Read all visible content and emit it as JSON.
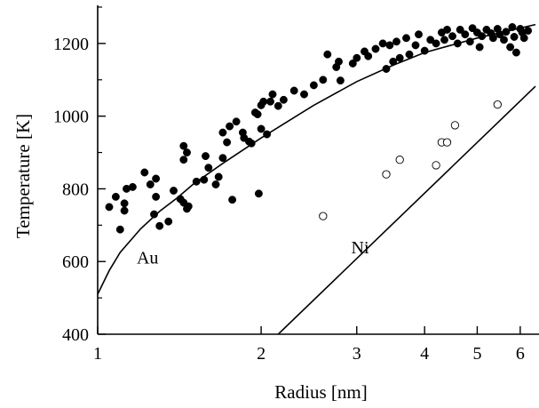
{
  "chart_data": {
    "type": "scatter",
    "title": "",
    "xlabel": "Radius [nm]",
    "ylabel": "Temperature [K]",
    "x_scale": "log",
    "xlim": [
      1,
      6.4
    ],
    "ylim": [
      400,
      1300
    ],
    "x_ticks": [
      {
        "value": 1,
        "label": "1"
      },
      {
        "value": 2,
        "label": "2"
      },
      {
        "value": 3,
        "label": "3"
      },
      {
        "value": 4,
        "label": "4"
      },
      {
        "value": 5,
        "label": "5"
      },
      {
        "value": 6,
        "label": "6"
      }
    ],
    "y_ticks": [
      {
        "value": 400,
        "label": "400"
      },
      {
        "value": 600,
        "label": "600"
      },
      {
        "value": 800,
        "label": "800"
      },
      {
        "value": 1000,
        "label": "1000"
      },
      {
        "value": 1200,
        "label": "1200"
      }
    ],
    "grid": false,
    "series": [
      {
        "name": "Au",
        "marker": "filled-circle",
        "color": "#000000",
        "points": [
          [
            1.05,
            750
          ],
          [
            1.08,
            778
          ],
          [
            1.1,
            688
          ],
          [
            1.12,
            740
          ],
          [
            1.12,
            760
          ],
          [
            1.13,
            800
          ],
          [
            1.16,
            805
          ],
          [
            1.22,
            845
          ],
          [
            1.25,
            812
          ],
          [
            1.27,
            730
          ],
          [
            1.28,
            778
          ],
          [
            1.28,
            828
          ],
          [
            1.3,
            698
          ],
          [
            1.35,
            710
          ],
          [
            1.38,
            795
          ],
          [
            1.42,
            772
          ],
          [
            1.44,
            762
          ],
          [
            1.44,
            880
          ],
          [
            1.44,
            918
          ],
          [
            1.46,
            745
          ],
          [
            1.47,
            752
          ],
          [
            1.46,
            900
          ],
          [
            1.52,
            820
          ],
          [
            1.57,
            825
          ],
          [
            1.58,
            890
          ],
          [
            1.6,
            858
          ],
          [
            1.65,
            812
          ],
          [
            1.67,
            833
          ],
          [
            1.7,
            885
          ],
          [
            1.7,
            955
          ],
          [
            1.73,
            928
          ],
          [
            1.75,
            972
          ],
          [
            1.77,
            770
          ],
          [
            1.8,
            985
          ],
          [
            1.85,
            955
          ],
          [
            1.86,
            940
          ],
          [
            1.9,
            930
          ],
          [
            1.92,
            925
          ],
          [
            1.95,
            1010
          ],
          [
            1.97,
            1005
          ],
          [
            1.98,
            787
          ],
          [
            2.0,
            965
          ],
          [
            2.0,
            1030
          ],
          [
            2.02,
            1040
          ],
          [
            2.05,
            950
          ],
          [
            2.08,
            1040
          ],
          [
            2.1,
            1060
          ],
          [
            2.15,
            1028
          ],
          [
            2.2,
            1045
          ],
          [
            2.3,
            1070
          ],
          [
            2.4,
            1060
          ],
          [
            2.5,
            1085
          ],
          [
            2.6,
            1100
          ],
          [
            2.65,
            1170
          ],
          [
            2.75,
            1135
          ],
          [
            2.78,
            1150
          ],
          [
            2.8,
            1098
          ],
          [
            2.95,
            1145
          ],
          [
            3.0,
            1160
          ],
          [
            3.1,
            1178
          ],
          [
            3.15,
            1165
          ],
          [
            3.25,
            1185
          ],
          [
            3.35,
            1200
          ],
          [
            3.4,
            1130
          ],
          [
            3.45,
            1195
          ],
          [
            3.5,
            1150
          ],
          [
            3.55,
            1205
          ],
          [
            3.6,
            1160
          ],
          [
            3.7,
            1215
          ],
          [
            3.75,
            1170
          ],
          [
            3.85,
            1195
          ],
          [
            3.9,
            1225
          ],
          [
            4.0,
            1180
          ],
          [
            4.1,
            1210
          ],
          [
            4.2,
            1200
          ],
          [
            4.3,
            1230
          ],
          [
            4.35,
            1210
          ],
          [
            4.4,
            1238
          ],
          [
            4.5,
            1220
          ],
          [
            4.6,
            1200
          ],
          [
            4.65,
            1238
          ],
          [
            4.75,
            1225
          ],
          [
            4.85,
            1205
          ],
          [
            4.9,
            1242
          ],
          [
            5.0,
            1230
          ],
          [
            5.05,
            1190
          ],
          [
            5.1,
            1220
          ],
          [
            5.2,
            1238
          ],
          [
            5.3,
            1228
          ],
          [
            5.35,
            1215
          ],
          [
            5.45,
            1240
          ],
          [
            5.5,
            1225
          ],
          [
            5.6,
            1210
          ],
          [
            5.65,
            1232
          ],
          [
            5.75,
            1190
          ],
          [
            5.8,
            1245
          ],
          [
            5.85,
            1218
          ],
          [
            5.9,
            1175
          ],
          [
            6.0,
            1240
          ],
          [
            6.05,
            1230
          ],
          [
            6.1,
            1215
          ],
          [
            6.2,
            1235
          ]
        ],
        "fit_line": [
          [
            1.0,
            510
          ],
          [
            1.05,
            575
          ],
          [
            1.1,
            625
          ],
          [
            1.2,
            690
          ],
          [
            1.3,
            738
          ],
          [
            1.4,
            775
          ],
          [
            1.5,
            813
          ],
          [
            1.7,
            870
          ],
          [
            2.0,
            940
          ],
          [
            2.5,
            1030
          ],
          [
            3.0,
            1095
          ],
          [
            3.5,
            1140
          ],
          [
            4.0,
            1175
          ],
          [
            5.0,
            1215
          ],
          [
            6.4,
            1252
          ]
        ]
      },
      {
        "name": "Ni",
        "marker": "open-circle",
        "color": "#000000",
        "points": [
          [
            2.6,
            725
          ],
          [
            3.4,
            840
          ],
          [
            3.6,
            880
          ],
          [
            4.2,
            865
          ],
          [
            4.3,
            928
          ],
          [
            4.4,
            928
          ],
          [
            4.55,
            975
          ],
          [
            5.45,
            1032
          ]
        ],
        "fit_line": [
          [
            2.15,
            400
          ],
          [
            6.4,
            1082
          ]
        ]
      }
    ],
    "annotations": [
      {
        "text": "Au",
        "x": 1.18,
        "y": 595
      },
      {
        "text": "Ni",
        "x": 2.93,
        "y": 622
      }
    ]
  }
}
